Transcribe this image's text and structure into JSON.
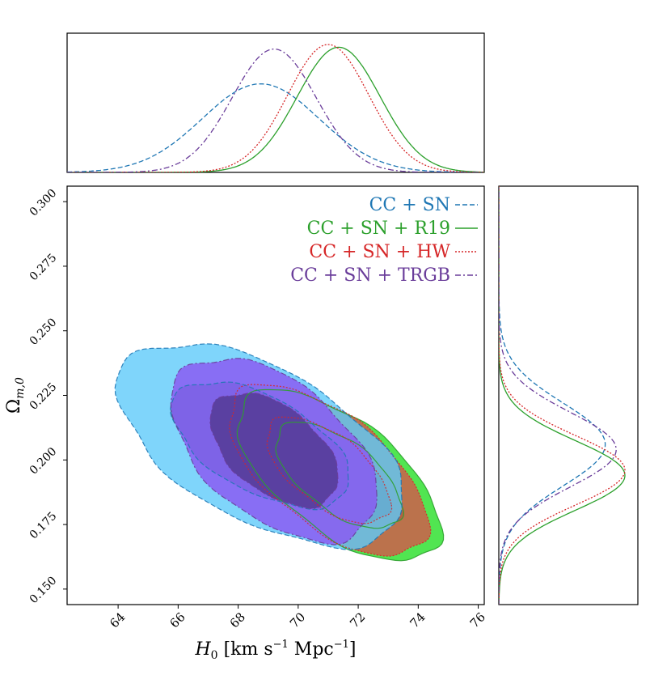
{
  "chart_data": {
    "type": "scatter",
    "subtype": "corner-plot",
    "x_variable": "H0",
    "y_variable": "Omega_m0",
    "xlabel": {
      "symbol": "H",
      "sub": "0",
      "units": "[km s",
      "exp1": "−1",
      "mid": " Mpc",
      "exp2": "−1",
      "close": "]"
    },
    "ylabel": {
      "symbol": "Ω",
      "sub": "m,0"
    },
    "xlim": [
      62.3,
      76.2
    ],
    "ylim": [
      0.144,
      0.306
    ],
    "xticks": [
      64,
      66,
      68,
      70,
      72,
      74,
      76
    ],
    "yticks": [
      0.15,
      0.175,
      0.2,
      0.225,
      0.25,
      0.275,
      0.3
    ],
    "xtick_labels": [
      "64",
      "66",
      "68",
      "70",
      "72",
      "74",
      "76"
    ],
    "ytick_labels": [
      "0.150",
      "0.175",
      "0.200",
      "0.225",
      "0.250",
      "0.275",
      "0.300"
    ],
    "legend_position": "top-right",
    "series": [
      {
        "name": "CC + SN",
        "label": "CC + SN",
        "color": "#1f77b4",
        "fill": "#5fcbfa",
        "dash": "6,3",
        "H0_mean": 68.75,
        "H0_sigma": 1.95,
        "Om_mean": 0.206,
        "Om_sigma": 0.016,
        "corr": -0.55
      },
      {
        "name": "CC + SN + R19",
        "label": "CC + SN + R19",
        "color": "#2ca02c",
        "fill": "#33e033",
        "dash": "",
        "H0_mean": 71.35,
        "H0_sigma": 1.38,
        "Om_mean": 0.194,
        "Om_sigma": 0.0135,
        "corr": -0.62
      },
      {
        "name": "CC + SN + HW",
        "label": "CC + SN + HW",
        "color": "#d62728",
        "fill": "#d8524a",
        "dash": "2,2",
        "H0_mean": 71.0,
        "H0_sigma": 1.35,
        "Om_mean": 0.196,
        "Om_sigma": 0.0135,
        "corr": -0.62
      },
      {
        "name": "CC + SN + TRGB",
        "label": "CC + SN + TRGB",
        "color": "#6a3d9a",
        "fill": "#8a5cf2",
        "dash": "7,3,2,3",
        "H0_mean": 69.2,
        "H0_sigma": 1.4,
        "Om_mean": 0.204,
        "Om_sigma": 0.0145,
        "corr": -0.5
      }
    ]
  }
}
